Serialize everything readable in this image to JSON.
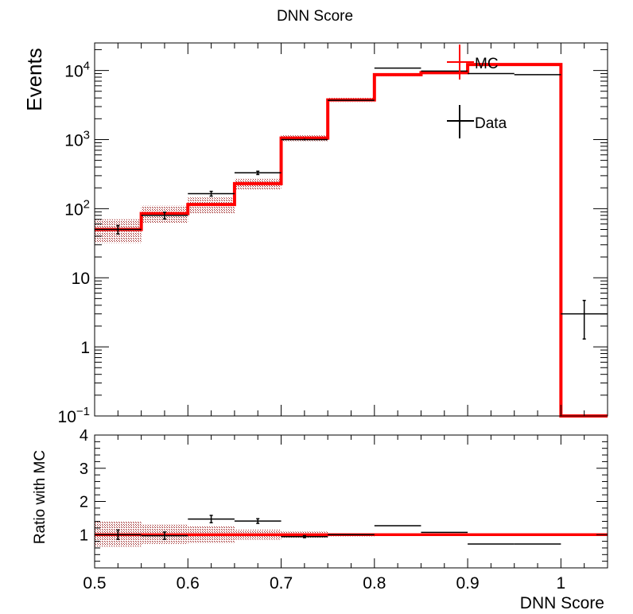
{
  "chart_data": [
    {
      "type": "histogram",
      "title": "DNN Score",
      "ylabel": "Events",
      "xlim": [
        0.5,
        1.05
      ],
      "ylim": [
        0.1,
        25000
      ],
      "yscale": "log",
      "grid": false,
      "legend_placement": "top-right",
      "bin_edges": [
        0.5,
        0.55,
        0.6,
        0.65,
        0.7,
        0.75,
        0.8,
        0.85,
        0.9,
        0.95,
        1.0,
        1.05
      ],
      "y_tick_values": [
        0.1,
        1,
        10,
        100,
        1000,
        10000
      ],
      "y_tick_labels": [
        {
          "base": "10",
          "exp": "−1"
        },
        {
          "base": "1",
          "exp": ""
        },
        {
          "base": "10",
          "exp": ""
        },
        {
          "base": "10",
          "exp": "2"
        },
        {
          "base": "10",
          "exp": "3"
        },
        {
          "base": "10",
          "exp": "4"
        }
      ],
      "series": [
        {
          "name": "MC",
          "color": "#ff0000",
          "values": [
            50,
            85,
            115,
            230,
            1050,
            3750,
            8700,
            9300,
            12200,
            12200,
            0.1
          ],
          "band_low": [
            32,
            62,
            85,
            190,
            950,
            3500,
            8300,
            9000,
            11800,
            11800,
            0.1
          ],
          "band_high": [
            70,
            110,
            145,
            270,
            1150,
            4000,
            9100,
            9600,
            12600,
            12600,
            0.1
          ]
        },
        {
          "name": "Data",
          "color": "#000000",
          "values": [
            50,
            80,
            165,
            330,
            1000,
            3700,
            10800,
            9800,
            9000,
            8700,
            3
          ],
          "errors": [
            7,
            9,
            13,
            18,
            32,
            60,
            104,
            99,
            95,
            93,
            1.7
          ]
        }
      ]
    },
    {
      "type": "histogram",
      "ylabel": "Ratio with MC",
      "xlabel": "DNN Score",
      "xlim": [
        0.5,
        1.05
      ],
      "ylim": [
        0,
        4
      ],
      "grid": false,
      "x_ticks": [
        "0.5",
        "0.6",
        "0.7",
        "0.8",
        "0.9",
        "1"
      ],
      "x_tick_values": [
        0.5,
        0.6,
        0.7,
        0.8,
        0.9,
        1.0
      ],
      "y_ticks": [
        "1",
        "2",
        "3",
        "4"
      ],
      "y_tick_values": [
        1,
        2,
        3,
        4
      ],
      "bin_edges": [
        0.5,
        0.55,
        0.6,
        0.65,
        0.7,
        0.75,
        0.8,
        0.85,
        0.9,
        0.95,
        1.0,
        1.05
      ],
      "ratio_values": [
        1.0,
        0.97,
        1.47,
        1.41,
        0.94,
        1.0,
        1.27,
        1.07,
        0.72,
        0.72
      ],
      "ratio_errors": [
        0.14,
        0.11,
        0.11,
        0.07,
        0.03,
        0.02,
        0.01,
        0.01,
        0.01,
        0.01
      ],
      "band_low": [
        0.64,
        0.72,
        0.74,
        0.85,
        0.91,
        0.95,
        0.96,
        0.97,
        0.97,
        0.97
      ],
      "band_high": [
        1.4,
        1.3,
        1.26,
        1.15,
        1.09,
        1.05,
        1.04,
        1.03,
        1.03,
        1.03
      ],
      "reference_value": 1
    }
  ]
}
